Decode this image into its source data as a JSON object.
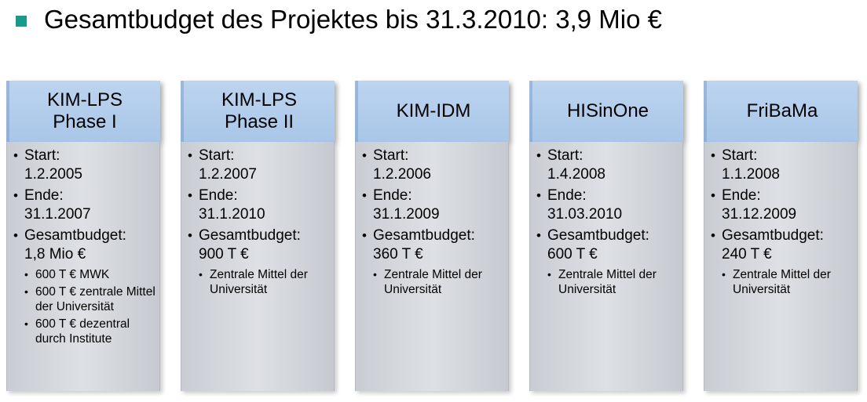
{
  "headline": {
    "text": "Gesamtbudget des Projektes bis 31.3.2010: 3,9 Mio €"
  },
  "colors": {
    "bullet": "#1a9a8a",
    "header_fill": "#bcd4ef",
    "body_fill": "#d5d9de"
  },
  "labels": {
    "start": "Start:",
    "end": "Ende:",
    "budget": "Gesamtbudget:"
  },
  "projects": [
    {
      "name": "KIM-LPS\nPhase I",
      "start": "1.2.2005",
      "end": "31.1.2007",
      "budget": "1,8 Mio €",
      "notes": [
        "600 T € MWK",
        "600 T € zentrale Mittel der Universität",
        "600 T € dezentral durch Institute"
      ]
    },
    {
      "name": "KIM-LPS\nPhase II",
      "start": "1.2.2007",
      "end": "31.1.2010",
      "budget": "900 T €",
      "notes": [
        "Zentrale Mittel der Universität"
      ]
    },
    {
      "name": "KIM-IDM",
      "start": "1.2.2006",
      "end": "31.1.2009",
      "budget": "360 T €",
      "notes": [
        "Zentrale Mittel der Universität"
      ]
    },
    {
      "name": "HISinOne",
      "start": "1.4.2008",
      "end": "31.03.2010",
      "budget": "600 T €",
      "notes": [
        "Zentrale Mittel der Universität"
      ]
    },
    {
      "name": "FriBaMa",
      "start": "1.1.2008",
      "end": "31.12.2009",
      "budget": "240 T €",
      "notes": [
        "Zentrale Mittel der Universität"
      ]
    }
  ]
}
